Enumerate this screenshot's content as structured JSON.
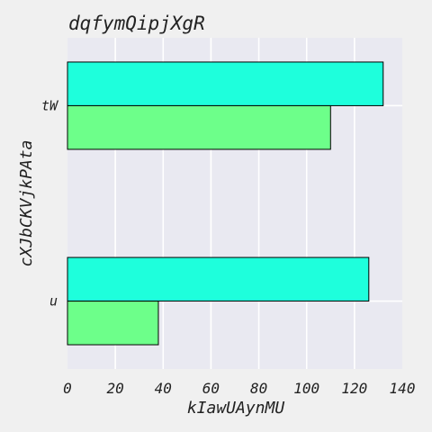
{
  "chart_data": {
    "type": "bar",
    "orientation": "horizontal",
    "title": "dqfymQipjXgR",
    "xlabel": "kIawUAynMU",
    "ylabel": "cXJbCKVjkPAta",
    "categories": [
      "tW",
      "u"
    ],
    "series": [
      {
        "values": [
          132,
          126
        ],
        "color": "#1effdc"
      },
      {
        "values": [
          110,
          38
        ],
        "color": "#6dff8a"
      }
    ],
    "xlim": [
      0,
      140
    ],
    "xticks": [
      "0",
      "20",
      "40",
      "60",
      "80",
      "100",
      "120",
      "140"
    ],
    "grid": true,
    "legend": "none",
    "plot_background": "#e9e9f1",
    "grid_color": "#ffffff",
    "bar_edge_color": "#000000"
  }
}
